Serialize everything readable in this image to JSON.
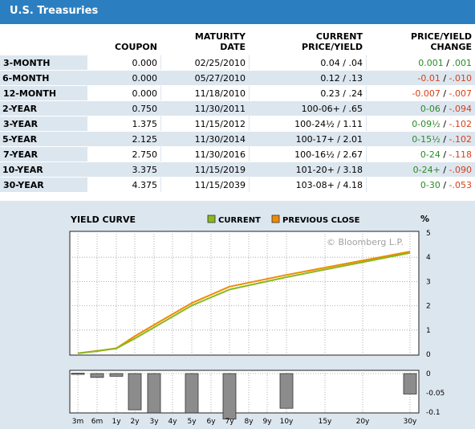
{
  "header": {
    "title": "U.S. Treasuries"
  },
  "table": {
    "columns": [
      "",
      "COUPON",
      "MATURITY DATE",
      "CURRENT PRICE/YIELD",
      "PRICE/YIELD CHANGE"
    ],
    "col_lines": [
      [
        "",
        ""
      ],
      [
        "",
        "COUPON"
      ],
      [
        "MATURITY",
        "DATE"
      ],
      [
        "CURRENT",
        "PRICE/YIELD"
      ],
      [
        "PRICE/YIELD",
        "CHANGE"
      ]
    ],
    "rows": [
      {
        "term": "3-MONTH",
        "coupon": "0.000",
        "maturity": "02/25/2010",
        "current": "0.04 / .04",
        "chg_price": "0.001",
        "chg_yield": ".001",
        "chg_price_sign": "pos",
        "chg_yield_sign": "pos"
      },
      {
        "term": "6-MONTH",
        "coupon": "0.000",
        "maturity": "05/27/2010",
        "current": "0.12 / .13",
        "chg_price": "-0.01",
        "chg_yield": "-.010",
        "chg_price_sign": "neg",
        "chg_yield_sign": "neg"
      },
      {
        "term": "12-MONTH",
        "coupon": "0.000",
        "maturity": "11/18/2010",
        "current": "0.23 / .24",
        "chg_price": "-0.007",
        "chg_yield": "-.007",
        "chg_price_sign": "neg",
        "chg_yield_sign": "neg"
      },
      {
        "term": "2-YEAR",
        "coupon": "0.750",
        "maturity": "11/30/2011",
        "current": "100-06+ / .65",
        "chg_price": "0-06",
        "chg_yield": "-.094",
        "chg_price_sign": "pos",
        "chg_yield_sign": "neg"
      },
      {
        "term": "3-YEAR",
        "coupon": "1.375",
        "maturity": "11/15/2012",
        "current": "100-24½ / 1.11",
        "chg_price": "0-09½",
        "chg_yield": "-.102",
        "chg_price_sign": "pos",
        "chg_yield_sign": "neg"
      },
      {
        "term": "5-YEAR",
        "coupon": "2.125",
        "maturity": "11/30/2014",
        "current": "100-17+ / 2.01",
        "chg_price": "0-15½",
        "chg_yield": "-.102",
        "chg_price_sign": "pos",
        "chg_yield_sign": "neg"
      },
      {
        "term": "7-YEAR",
        "coupon": "2.750",
        "maturity": "11/30/2016",
        "current": "100-16½ / 2.67",
        "chg_price": "0-24",
        "chg_yield": "-.118",
        "chg_price_sign": "pos",
        "chg_yield_sign": "neg"
      },
      {
        "term": "10-YEAR",
        "coupon": "3.375",
        "maturity": "11/15/2019",
        "current": "101-20+ / 3.18",
        "chg_price": "0-24+",
        "chg_yield": "-.090",
        "chg_price_sign": "pos",
        "chg_yield_sign": "neg"
      },
      {
        "term": "30-YEAR",
        "coupon": "4.375",
        "maturity": "11/15/2039",
        "current": "103-08+ / 4.18",
        "chg_price": "0-30",
        "chg_yield": "-.053",
        "chg_price_sign": "pos",
        "chg_yield_sign": "neg"
      }
    ],
    "sep": " / "
  },
  "colors": {
    "header_bg": "#2b7fc0",
    "row_alt": "#dce6ef",
    "positive": "#2a8a2a",
    "negative": "#d8401a",
    "current_line": "#8ab81e",
    "previous_line": "#f08a00",
    "bar_fill": "#8c8c8c",
    "panel_bg": "#dce6ef"
  },
  "chart_data": [
    {
      "type": "line",
      "title": "YIELD CURVE",
      "ylabel": "%",
      "ylim": [
        0,
        5
      ],
      "yticks": [
        0,
        1,
        2,
        3,
        4,
        5
      ],
      "grid": true,
      "legend_position": "top",
      "watermark": "© Bloomberg L.P.",
      "x": [
        "3m",
        "6m",
        "1y",
        "2y",
        "3y",
        "4y",
        "5y",
        "6y",
        "7y",
        "8y",
        "9y",
        "10y",
        "15y",
        "20y",
        "30y"
      ],
      "x_years": [
        0.25,
        0.5,
        1,
        2,
        3,
        4,
        5,
        6,
        7,
        8,
        9,
        10,
        15,
        20,
        30
      ],
      "series": [
        {
          "name": "CURRENT",
          "x": [
            0.25,
            0.5,
            1,
            2,
            3,
            5,
            7,
            10,
            30
          ],
          "values": [
            0.04,
            0.13,
            0.24,
            0.65,
            1.11,
            2.01,
            2.67,
            3.18,
            4.18
          ]
        },
        {
          "name": "PREVIOUS CLOSE",
          "x": [
            0.25,
            0.5,
            1,
            2,
            3,
            5,
            7,
            10,
            30
          ],
          "values": [
            0.039,
            0.14,
            0.247,
            0.744,
            1.212,
            2.112,
            2.788,
            3.27,
            4.233
          ]
        }
      ]
    },
    {
      "type": "bar",
      "ylim": [
        -0.1,
        0
      ],
      "yticks": [
        "0",
        "-0.05",
        "-0.1"
      ],
      "yticks_values": [
        0,
        -0.05,
        -0.1
      ],
      "x": [
        0.25,
        0.5,
        1,
        2,
        3,
        5,
        7,
        10,
        30
      ],
      "values": [
        0.001,
        -0.01,
        -0.007,
        -0.094,
        -0.102,
        -0.102,
        -0.118,
        -0.09,
        -0.053
      ]
    }
  ]
}
